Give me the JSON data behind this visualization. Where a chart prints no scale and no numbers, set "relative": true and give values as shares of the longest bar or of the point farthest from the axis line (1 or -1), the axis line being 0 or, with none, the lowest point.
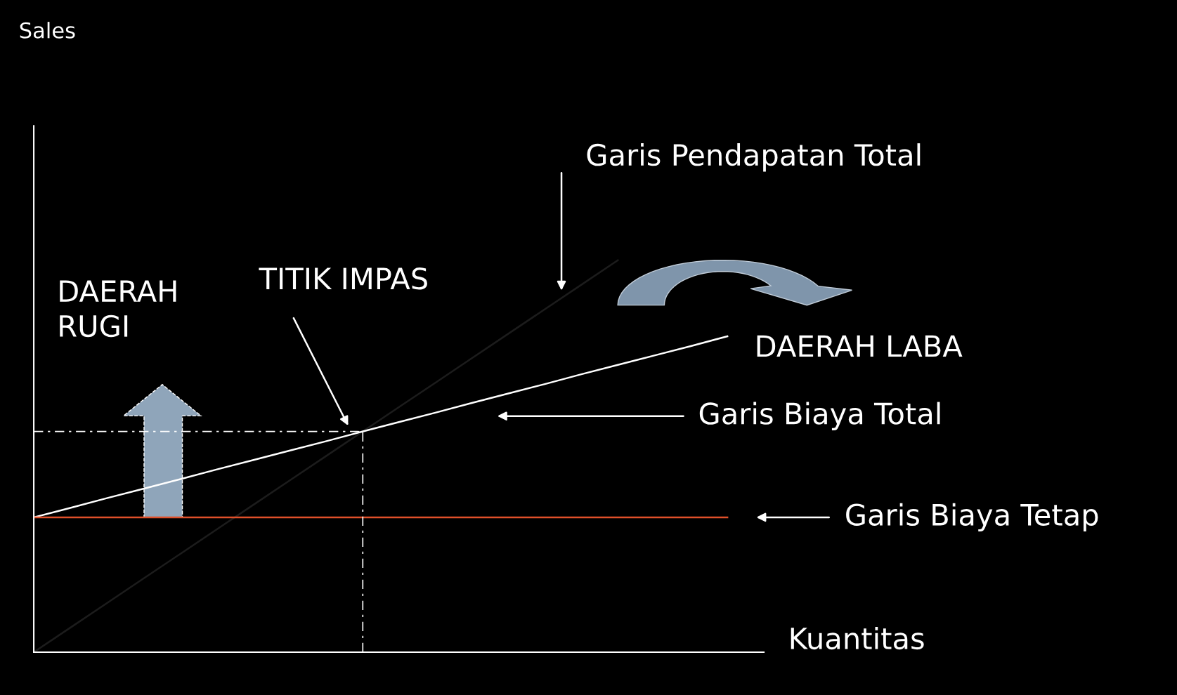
{
  "chart_data": {
    "type": "line",
    "relative": true,
    "xlabel": "Kuantitas",
    "legend": false,
    "marker": "none",
    "line_style": "solid",
    "categories": [
      null,
      null,
      null,
      null,
      null,
      null,
      null,
      null,
      null,
      null,
      null,
      null,
      null,
      null,
      null,
      null,
      null,
      null,
      null,
      null,
      null
    ],
    "series": [
      {
        "color": "#1c1c1c",
        "values": [
          0,
          0.0625,
          0.125,
          0.1875,
          0.25,
          0.3125,
          0.375,
          0.4375,
          0.5,
          0.5625,
          0.625,
          0.6875,
          0.75,
          0.8125,
          0.875,
          0.9375,
          1,
          null,
          null,
          null,
          null
        ]
      },
      {
        "color": "#ffffff",
        "values": [
          0.344,
          0.368,
          0.393,
          0.417,
          0.441,
          0.466,
          0.49,
          0.514,
          0.538,
          0.563,
          0.587,
          0.611,
          0.636,
          0.66,
          0.684,
          0.709,
          0.733,
          0.757,
          0.781,
          0.806,
          null
        ]
      },
      {
        "color": "#e0502a",
        "values": [
          0.344,
          0.344,
          0.344,
          0.344,
          0.344,
          0.344,
          0.344,
          0.344,
          0.344,
          0.344,
          0.344,
          0.344,
          0.344,
          0.344,
          0.344,
          0.344,
          0.344,
          0.344,
          0.344,
          0.344,
          null
        ]
      }
    ],
    "ref_lines": [
      {
        "axis": "y",
        "value": 0.563,
        "color": "#ffffff",
        "line_style": "dashed"
      }
    ],
    "annotations": [
      "Garis Pendapatan Total",
      "TITIK IMPAS",
      "DAERAH\nRUGI",
      "DAERAH LABA",
      "Garis Biaya Total",
      "Garis Biaya Tetap",
      "Sales"
    ]
  }
}
